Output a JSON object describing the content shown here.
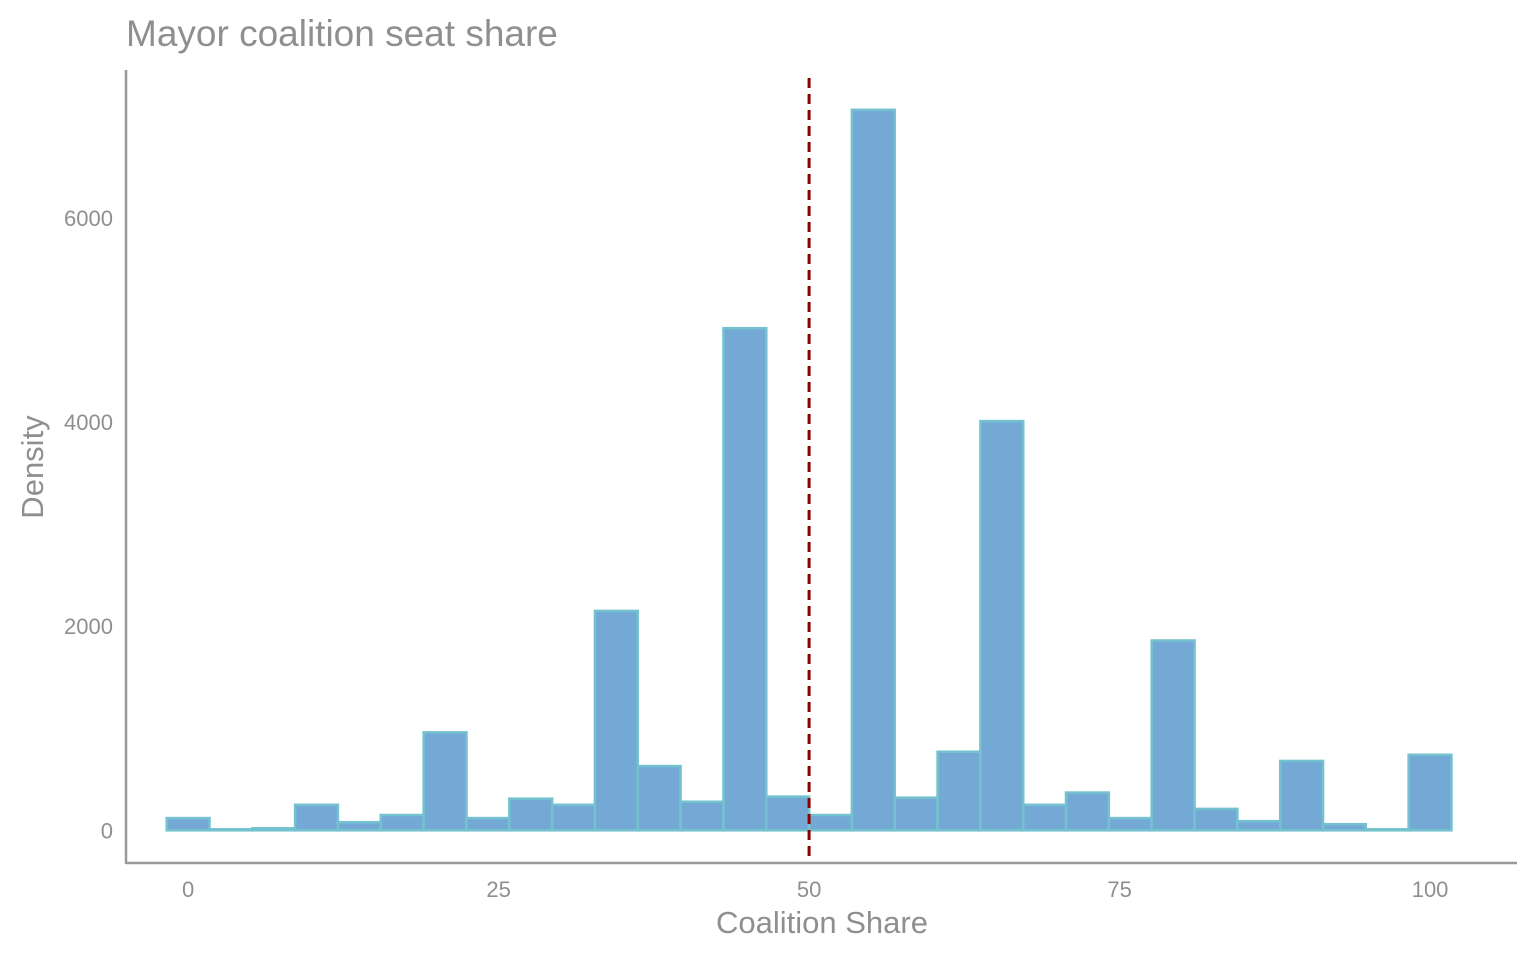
{
  "chart_data": {
    "type": "bar",
    "title": "Mayor coalition seat share",
    "xlabel": "Coalition Share",
    "ylabel": "Density",
    "xlim": [
      -5,
      107
    ],
    "ylim": [
      -330,
      7450
    ],
    "x_ticks": [
      0,
      25,
      50,
      75,
      100
    ],
    "y_ticks": [
      0,
      2000,
      4000,
      6000
    ],
    "bin_width": 3.448,
    "bins": [
      {
        "x": 0.0,
        "value": 120
      },
      {
        "x": 3.45,
        "value": 10
      },
      {
        "x": 6.9,
        "value": 20
      },
      {
        "x": 10.34,
        "value": 250
      },
      {
        "x": 13.79,
        "value": 80
      },
      {
        "x": 17.24,
        "value": 150
      },
      {
        "x": 20.69,
        "value": 960
      },
      {
        "x": 24.14,
        "value": 120
      },
      {
        "x": 27.59,
        "value": 310
      },
      {
        "x": 31.03,
        "value": 250
      },
      {
        "x": 34.48,
        "value": 2150
      },
      {
        "x": 37.93,
        "value": 630
      },
      {
        "x": 41.38,
        "value": 280
      },
      {
        "x": 44.83,
        "value": 4920
      },
      {
        "x": 48.28,
        "value": 330
      },
      {
        "x": 51.72,
        "value": 150
      },
      {
        "x": 55.17,
        "value": 7060
      },
      {
        "x": 58.62,
        "value": 320
      },
      {
        "x": 62.07,
        "value": 770
      },
      {
        "x": 65.52,
        "value": 4010
      },
      {
        "x": 68.97,
        "value": 250
      },
      {
        "x": 72.41,
        "value": 370
      },
      {
        "x": 75.86,
        "value": 120
      },
      {
        "x": 79.31,
        "value": 1860
      },
      {
        "x": 82.76,
        "value": 210
      },
      {
        "x": 86.21,
        "value": 90
      },
      {
        "x": 89.66,
        "value": 680
      },
      {
        "x": 93.1,
        "value": 60
      },
      {
        "x": 96.55,
        "value": 10
      },
      {
        "x": 100.0,
        "value": 740
      }
    ],
    "reference_line": {
      "x": 50,
      "style": "dashed",
      "color": "#8b0000"
    },
    "colors": {
      "bar_fill": "#74a9d6",
      "bar_stroke": "#74c2cf",
      "axis": "#999999",
      "text": "#8f8f8f"
    },
    "grid": false
  }
}
